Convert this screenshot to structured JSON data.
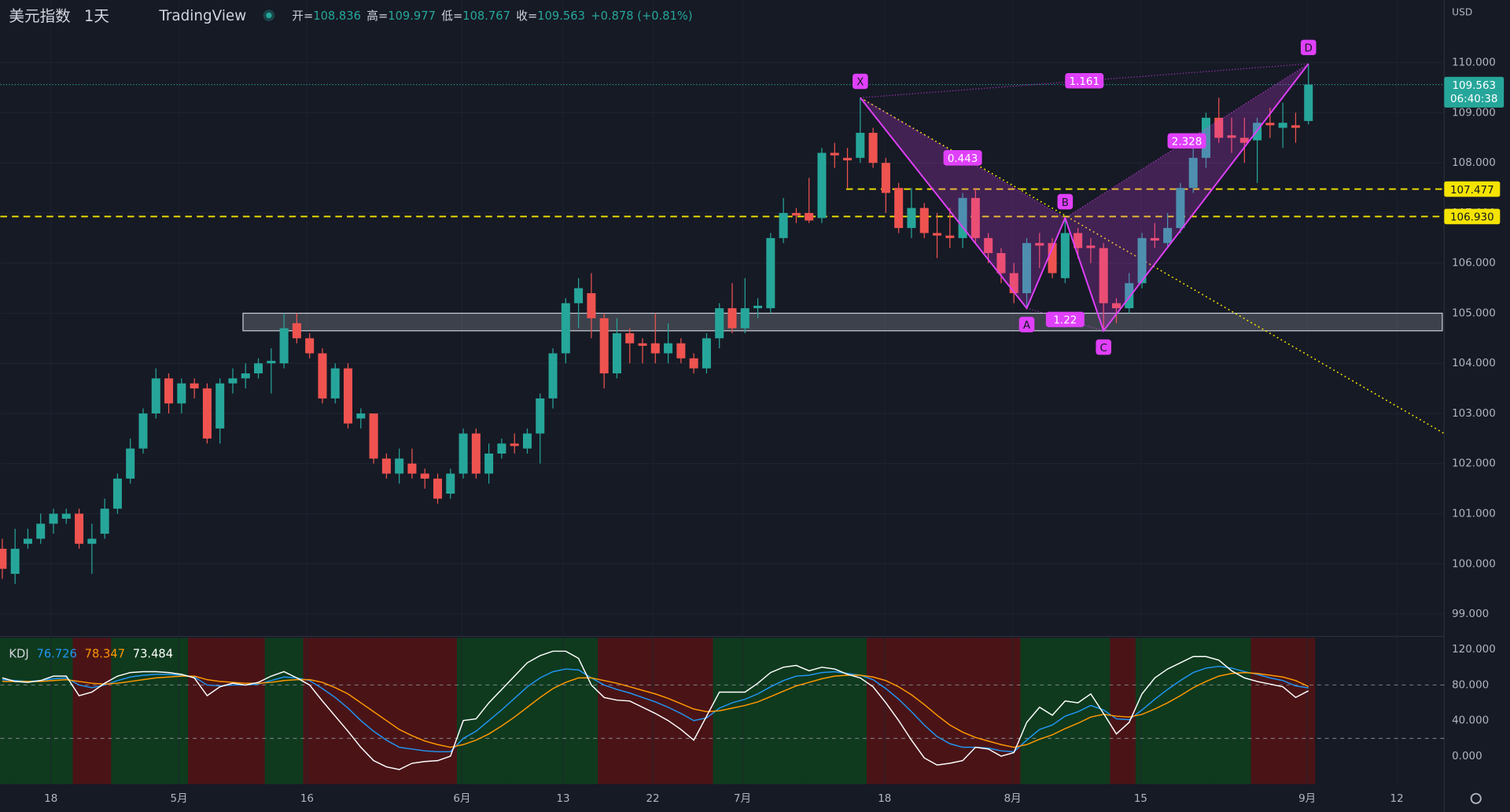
{
  "chart_data": {
    "type": "candlestick",
    "title": "美元指数",
    "interval": "1天",
    "brand": "TradingView",
    "ohlc_labels": [
      "开=",
      "高=",
      "低=",
      "收="
    ],
    "change_text": "+0.878 (+0.81%)",
    "currency": "USD",
    "countdown": "06:40:38",
    "up_color": "#26a69a",
    "down_color": "#ef5350",
    "xlim": [
      -0.15,
      112.6
    ],
    "xticks": [
      {
        "value": 3.8,
        "label": "18"
      },
      {
        "value": 13.8,
        "label": "5月"
      },
      {
        "value": 23.8,
        "label": "16"
      },
      {
        "value": 35.9,
        "label": "6月"
      },
      {
        "value": 43.8,
        "label": "13"
      },
      {
        "value": 50.8,
        "label": "22"
      },
      {
        "value": 57.8,
        "label": "7月"
      },
      {
        "value": 68.9,
        "label": "18"
      },
      {
        "value": 78.9,
        "label": "8月"
      },
      {
        "value": 88.9,
        "label": "15"
      },
      {
        "value": 101.9,
        "label": "9月"
      },
      {
        "value": 108.9,
        "label": "12"
      }
    ],
    "ylim": [
      98.58,
      111.25
    ],
    "yticks": [
      {
        "value": 99,
        "label": "99.000"
      },
      {
        "value": 100,
        "label": "100.000"
      },
      {
        "value": 101,
        "label": "101.000"
      },
      {
        "value": 102,
        "label": "102.000"
      },
      {
        "value": 103,
        "label": "103.000"
      },
      {
        "value": 104,
        "label": "104.000"
      },
      {
        "value": 105,
        "label": "105.000"
      },
      {
        "value": 106,
        "label": "106.000"
      },
      {
        "value": 107,
        "label": "107.000"
      },
      {
        "value": 108,
        "label": "108.000"
      },
      {
        "value": 109,
        "label": "109.000"
      },
      {
        "value": 110,
        "label": "110.000"
      }
    ],
    "grid": true,
    "candles": {
      "open": [
        100.3,
        99.8,
        100.4,
        100.5,
        100.8,
        100.9,
        101.0,
        100.4,
        100.6,
        101.1,
        101.7,
        102.3,
        103.0,
        103.7,
        103.2,
        103.6,
        103.5,
        102.7,
        103.6,
        103.7,
        103.8,
        104.0,
        104.0,
        104.8,
        104.5,
        104.2,
        103.3,
        103.9,
        102.9,
        103.0,
        102.1,
        101.8,
        102.0,
        101.8,
        101.7,
        101.4,
        101.8,
        102.6,
        101.8,
        102.2,
        102.4,
        102.3,
        102.6,
        103.3,
        104.2,
        105.2,
        105.4,
        104.9,
        103.8,
        104.6,
        104.4,
        104.4,
        104.2,
        104.4,
        104.1,
        103.9,
        104.5,
        105.1,
        104.7,
        105.1,
        105.1,
        106.5,
        107.0,
        107.0,
        106.9,
        108.2,
        108.1,
        108.1,
        108.6,
        108.0,
        107.5,
        106.7,
        107.1,
        106.6,
        106.55,
        106.5,
        107.3,
        106.5,
        106.2,
        105.8,
        105.4,
        106.4,
        106.4,
        105.7,
        106.6,
        106.35,
        106.3,
        105.2,
        105.1,
        105.6,
        106.5,
        106.4,
        106.7,
        107.5,
        108.1,
        108.9,
        108.55,
        108.5,
        108.45,
        108.8,
        108.7,
        108.75,
        108.836
      ],
      "high": [
        100.5,
        100.7,
        100.7,
        101.0,
        101.1,
        101.1,
        101.1,
        100.8,
        101.3,
        101.8,
        102.5,
        103.1,
        103.9,
        103.8,
        103.7,
        103.7,
        103.6,
        103.7,
        103.9,
        104.0,
        104.1,
        104.3,
        105.0,
        105.0,
        104.6,
        104.3,
        104.0,
        104.0,
        103.1,
        103.0,
        102.2,
        102.3,
        102.3,
        101.9,
        101.8,
        101.9,
        102.7,
        102.7,
        102.4,
        102.5,
        102.6,
        102.7,
        103.4,
        104.3,
        105.3,
        105.7,
        105.8,
        105.0,
        104.9,
        104.7,
        104.5,
        105.0,
        104.8,
        104.5,
        104.2,
        104.6,
        105.2,
        105.6,
        105.7,
        105.3,
        106.6,
        107.3,
        107.1,
        107.7,
        108.3,
        108.4,
        108.3,
        109.3,
        108.7,
        108.1,
        107.6,
        107.5,
        107.2,
        107.0,
        107.1,
        107.4,
        107.5,
        106.6,
        106.3,
        106.0,
        106.5,
        106.6,
        106.5,
        106.9,
        106.7,
        106.5,
        106.4,
        105.3,
        105.8,
        106.6,
        106.8,
        107.0,
        107.6,
        108.4,
        109.0,
        109.3,
        108.9,
        108.9,
        108.9,
        109.1,
        109.2,
        109.0,
        109.977
      ],
      "low": [
        99.7,
        99.6,
        100.3,
        100.4,
        100.6,
        100.8,
        100.3,
        99.8,
        100.5,
        101.0,
        101.6,
        102.2,
        102.9,
        103.0,
        103.0,
        103.3,
        102.4,
        102.4,
        103.4,
        103.5,
        103.7,
        103.4,
        103.9,
        104.4,
        104.1,
        103.2,
        103.2,
        102.7,
        102.7,
        102.0,
        101.7,
        101.6,
        101.7,
        101.5,
        101.2,
        101.3,
        101.7,
        101.7,
        101.6,
        102.1,
        102.2,
        102.2,
        102.0,
        103.1,
        104.0,
        104.7,
        104.5,
        103.5,
        103.7,
        104.0,
        104.0,
        104.0,
        104.0,
        104.0,
        103.8,
        103.8,
        104.3,
        104.6,
        104.6,
        104.9,
        105.0,
        106.4,
        106.8,
        106.8,
        106.8,
        107.9,
        107.5,
        108.0,
        107.9,
        107.0,
        106.6,
        106.5,
        106.5,
        106.1,
        106.3,
        106.3,
        106.4,
        106.0,
        105.6,
        105.2,
        105.1,
        105.9,
        105.7,
        105.6,
        106.1,
        106.0,
        104.65,
        104.8,
        105.0,
        105.5,
        106.3,
        106.3,
        106.6,
        107.4,
        107.9,
        108.4,
        108.2,
        108.0,
        107.6,
        108.5,
        108.3,
        108.4,
        108.767
      ],
      "close": [
        99.9,
        100.3,
        100.5,
        100.8,
        101.0,
        101.0,
        100.4,
        100.5,
        101.1,
        101.7,
        102.3,
        103.0,
        103.7,
        103.2,
        103.6,
        103.5,
        102.5,
        103.6,
        103.7,
        103.8,
        104.0,
        104.05,
        104.7,
        104.5,
        104.2,
        103.3,
        103.9,
        102.8,
        103.0,
        102.1,
        101.8,
        102.1,
        101.8,
        101.7,
        101.3,
        101.8,
        102.6,
        101.8,
        102.2,
        102.4,
        102.35,
        102.6,
        103.3,
        104.2,
        105.2,
        105.5,
        104.9,
        103.8,
        104.6,
        104.4,
        104.35,
        104.2,
        104.4,
        104.1,
        103.9,
        104.5,
        105.1,
        104.7,
        105.1,
        105.15,
        106.5,
        107.0,
        106.95,
        106.85,
        108.2,
        108.15,
        108.05,
        108.6,
        108.0,
        107.4,
        106.7,
        107.1,
        106.6,
        106.55,
        106.5,
        107.3,
        106.5,
        106.2,
        105.8,
        105.4,
        106.4,
        106.35,
        105.8,
        106.6,
        106.3,
        106.3,
        105.2,
        105.1,
        105.6,
        106.5,
        106.45,
        106.7,
        107.5,
        108.1,
        108.9,
        108.5,
        108.5,
        108.4,
        108.8,
        108.75,
        108.8,
        108.7,
        109.563
      ]
    },
    "horizontal_lines": [
      {
        "value": 107.477,
        "start": 65.9,
        "color": "#f5e400"
      },
      {
        "value": 106.93,
        "label": "106.930",
        "color": "#f5e400"
      }
    ],
    "zone": {
      "low": 104.65,
      "high": 105.0,
      "start": 18.8
    },
    "trendline": {
      "start": {
        "x": 67,
        "y": 109.3
      },
      "end": {
        "x": 112.6,
        "y": 102.6
      },
      "color": "#f5e400"
    },
    "pattern": {
      "color": "#e040fb",
      "points": [
        {
          "label": "X",
          "x": 67,
          "y": 109.3
        },
        {
          "label": "A",
          "x": 80,
          "y": 105.1
        },
        {
          "label": "B",
          "x": 83,
          "y": 106.9
        },
        {
          "label": "C",
          "x": 86,
          "y": 104.65
        },
        {
          "label": "D",
          "x": 102,
          "y": 109.977
        }
      ],
      "ratios": [
        {
          "value": 0.443,
          "from": 0,
          "to": 2
        },
        {
          "value": 1.22,
          "from": 1,
          "to": 3
        },
        {
          "value": 2.328,
          "from": 2,
          "to": 4
        },
        {
          "value": 1.161,
          "from": 0,
          "to": 4
        }
      ]
    },
    "indicator": {
      "name": "KDJ",
      "ylim": [
        -31.4,
        133
      ],
      "yticks": [
        {
          "value": 0,
          "label": "0.000"
        },
        {
          "value": 40,
          "label": "40.000"
        },
        {
          "value": 80,
          "label": "80.000"
        },
        {
          "value": 120,
          "label": "120.000"
        }
      ],
      "levels": [
        20,
        80
      ],
      "bull_fill": "#0f3a1e",
      "bear_fill": "#4a1417",
      "series": [
        {
          "color": "#2196f3",
          "values": [
            86,
            85,
            84,
            85,
            87,
            88,
            80,
            77,
            80,
            85,
            89,
            91,
            92,
            92,
            91,
            89,
            80,
            79,
            80,
            80,
            81,
            85,
            89,
            88,
            85,
            76,
            66,
            54,
            40,
            28,
            18,
            10,
            8,
            6,
            5,
            5,
            20,
            28,
            40,
            52,
            65,
            78,
            88,
            95,
            98,
            97,
            88,
            80,
            75,
            71,
            66,
            61,
            55,
            48,
            40,
            43,
            54,
            60,
            64,
            70,
            78,
            85,
            90,
            91,
            94,
            95,
            93,
            91,
            86,
            76,
            64,
            50,
            35,
            22,
            14,
            10,
            10,
            9,
            6,
            5,
            18,
            30,
            35,
            45,
            50,
            57,
            52,
            42,
            41,
            52,
            64,
            75,
            85,
            94,
            99,
            101,
            99,
            95,
            92,
            88,
            85,
            79,
            76.726
          ]
        },
        {
          "color": "#ff9800",
          "values": [
            84,
            84,
            84,
            84,
            85,
            86,
            84,
            82,
            81,
            82,
            84,
            86,
            88,
            89,
            90,
            90,
            86,
            84,
            83,
            82,
            82,
            83,
            85,
            86,
            86,
            83,
            77,
            70,
            60,
            50,
            40,
            30,
            23,
            17,
            13,
            10,
            13,
            18,
            25,
            34,
            44,
            55,
            66,
            76,
            83,
            88,
            88,
            85,
            82,
            78,
            74,
            70,
            65,
            59,
            53,
            50,
            51,
            54,
            57,
            61,
            67,
            73,
            79,
            83,
            87,
            90,
            91,
            91,
            89,
            85,
            78,
            69,
            58,
            46,
            35,
            27,
            21,
            17,
            13,
            10,
            13,
            19,
            24,
            31,
            37,
            44,
            47,
            45,
            44,
            47,
            53,
            60,
            68,
            77,
            84,
            90,
            93,
            94,
            93,
            91,
            89,
            85,
            78.347
          ]
        },
        {
          "color": "#ffffff",
          "values": [
            88,
            84,
            83,
            85,
            90,
            90,
            68,
            72,
            82,
            90,
            94,
            95,
            95,
            94,
            92,
            88,
            68,
            78,
            82,
            80,
            83,
            90,
            95,
            88,
            80,
            62,
            45,
            28,
            10,
            -5,
            -12,
            -15,
            -8,
            -6,
            -5,
            0,
            40,
            42,
            60,
            75,
            90,
            105,
            113,
            118,
            118,
            110,
            80,
            66,
            63,
            62,
            55,
            48,
            40,
            30,
            18,
            45,
            72,
            72,
            72,
            82,
            94,
            100,
            102,
            96,
            100,
            98,
            92,
            88,
            78,
            60,
            40,
            18,
            -2,
            -10,
            -8,
            -5,
            10,
            8,
            0,
            4,
            38,
            55,
            46,
            62,
            60,
            70,
            48,
            25,
            38,
            70,
            88,
            98,
            105,
            112,
            112,
            108,
            96,
            88,
            84,
            81,
            78,
            66,
            73.484
          ]
        }
      ]
    }
  }
}
